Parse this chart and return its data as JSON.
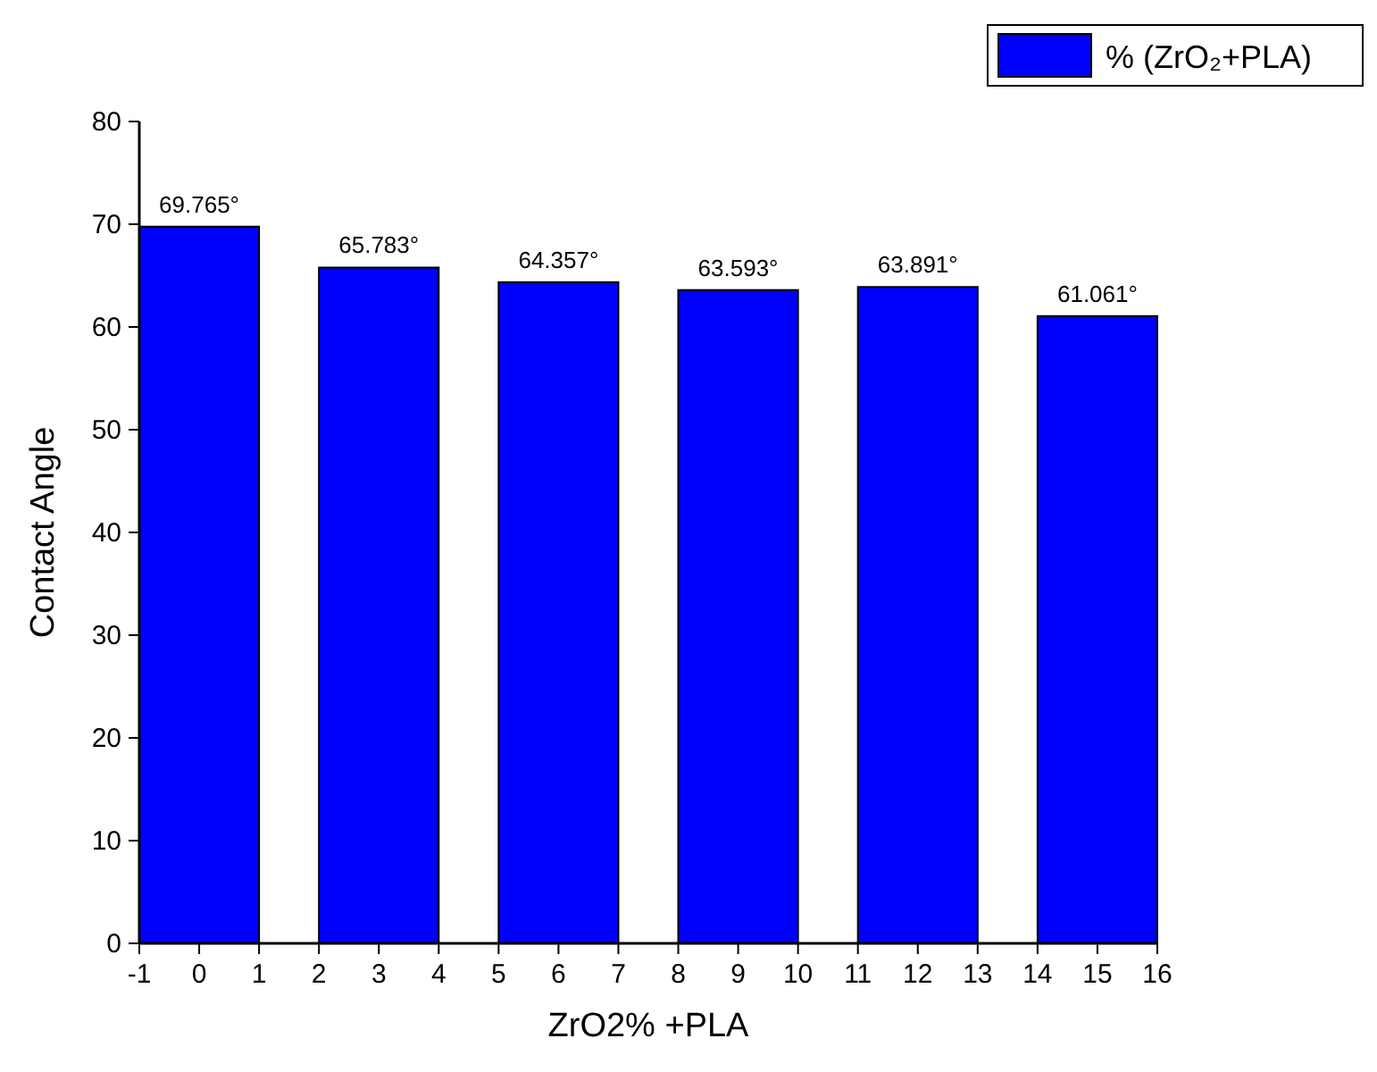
{
  "chart_data": {
    "type": "bar",
    "xlabel": "ZrO2% +PLA",
    "ylabel": "Contact Angle",
    "x": [
      0,
      3,
      6,
      9,
      12,
      15
    ],
    "series": [
      {
        "name": "% (ZrO₂+PLA)",
        "color": "#0000ff",
        "values": [
          69.765,
          65.783,
          64.357,
          63.593,
          63.891,
          61.061
        ],
        "value_labels": [
          "69.765°",
          "65.783°",
          "64.357°",
          "63.593°",
          "63.891°",
          "61.061°"
        ]
      }
    ],
    "xlim": [
      -1,
      16
    ],
    "xticks": [
      -1,
      0,
      1,
      2,
      3,
      4,
      5,
      6,
      7,
      8,
      9,
      10,
      11,
      12,
      13,
      14,
      15,
      16
    ],
    "ylim": [
      0,
      80
    ],
    "yticks": [
      0,
      10,
      20,
      30,
      40,
      50,
      60,
      70,
      80
    ],
    "grid": false,
    "legend": "top right"
  }
}
